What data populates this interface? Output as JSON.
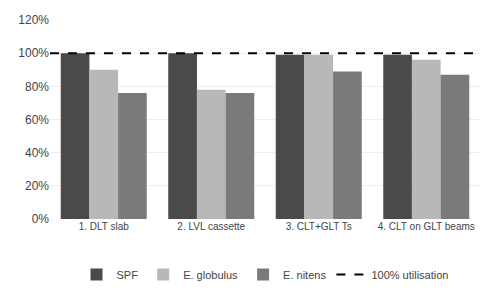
{
  "chart_data": {
    "type": "bar",
    "categories": [
      "1. DLT slab",
      "2. LVL cassette",
      "3. CLT+GLT Ts",
      "4. CLT on GLT beams"
    ],
    "series": [
      {
        "name": "SPF",
        "color": "#4a4a4a",
        "values": [
          1.0,
          1.0,
          0.99,
          0.99
        ]
      },
      {
        "name": "E. globulus",
        "color": "#b8b8b8",
        "values": [
          0.9,
          0.78,
          0.99,
          0.96
        ]
      },
      {
        "name": "E. nitens",
        "color": "#7a7a7a",
        "values": [
          0.76,
          0.76,
          0.89,
          0.87
        ]
      }
    ],
    "hline": {
      "name": "100% utilisation",
      "value": 1.0,
      "color": "#000000",
      "line_style": "dashed"
    },
    "ylim": [
      0,
      1.2
    ],
    "yticks": [
      {
        "value": 0.0,
        "label": "0%"
      },
      {
        "value": 0.2,
        "label": "20%"
      },
      {
        "value": 0.4,
        "label": "40%"
      },
      {
        "value": 0.6,
        "label": "60%"
      },
      {
        "value": 0.8,
        "label": "80%"
      },
      {
        "value": 1.0,
        "label": "100%"
      },
      {
        "value": 1.2,
        "label": "120%"
      }
    ],
    "grid": true,
    "legend": "bottom"
  }
}
